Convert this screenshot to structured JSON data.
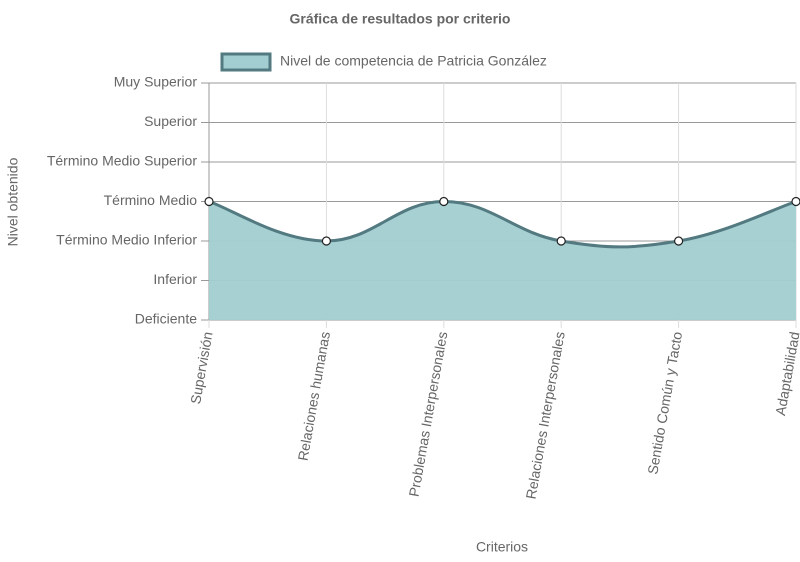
{
  "chart_data": {
    "type": "line",
    "title": "Gráfica de resultados por criterio",
    "x_label": "Criterios",
    "y_label": "Nivel obtenido",
    "categories": [
      "Supervisión",
      "Relaciones humanas",
      "Problemas Interpersonales",
      "Relaciones Interpersonales",
      "Sentido Común y Tacto",
      "Adaptabilidad"
    ],
    "series": [
      {
        "name": "Nivel de competencia de Patricia González",
        "color": "#527a80",
        "fill": "#a2cdd1",
        "values": [
          3,
          2,
          3,
          2,
          2,
          3
        ]
      }
    ],
    "ylim": [
      0,
      6
    ],
    "yticks": [
      {
        "value": 0,
        "label": "Deficiente"
      },
      {
        "value": 1,
        "label": "Inferior"
      },
      {
        "value": 2,
        "label": "Término Medio Inferior"
      },
      {
        "value": 3,
        "label": "Término Medio"
      },
      {
        "value": 4,
        "label": "Término Medio Superior"
      },
      {
        "value": 5,
        "label": "Superior"
      },
      {
        "value": 6,
        "label": "Muy Superior"
      }
    ],
    "grid": true,
    "legend": "top"
  }
}
